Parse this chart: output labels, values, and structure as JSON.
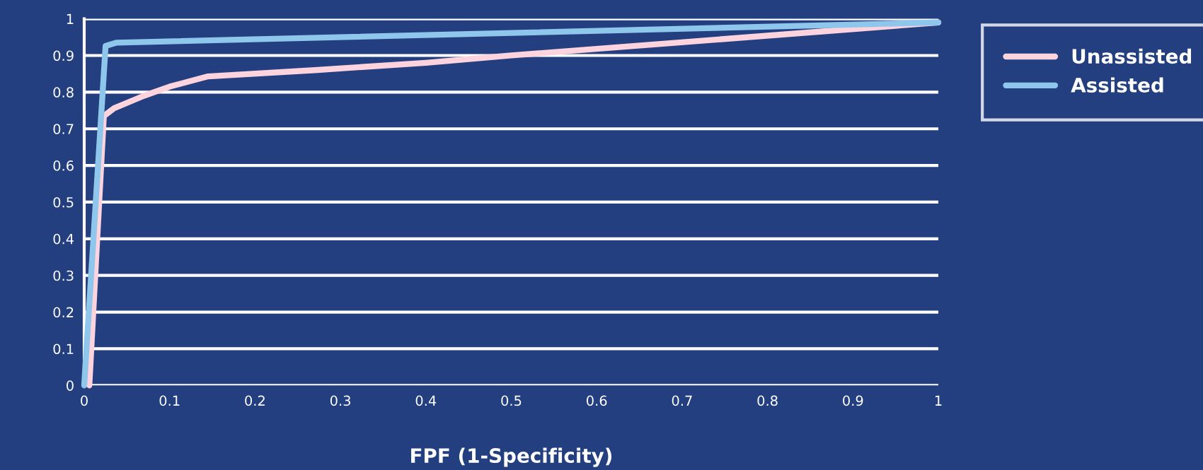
{
  "chart_data": {
    "type": "line",
    "xlabel": "FPF (1-Specificity)",
    "xlim": [
      0,
      1
    ],
    "xticks": [
      0,
      0.1,
      0.2,
      0.3,
      0.4,
      0.5,
      0.6,
      0.7,
      0.8,
      0.9,
      1
    ],
    "ylim": [
      0,
      1
    ],
    "yticks": [
      0,
      0.1,
      0.2,
      0.3,
      0.4,
      0.5,
      0.6,
      0.7,
      0.8,
      0.9,
      1
    ],
    "grid": "y",
    "legend": "top right",
    "marker": "none",
    "line_style": "solid",
    "series": [
      {
        "name": "Unassisted",
        "color": "#fdd3de",
        "x": [
          0.006,
          0.023,
          0.035,
          0.07,
          0.1,
          0.145,
          0.27,
          0.4,
          0.5,
          1
        ],
        "values": [
          0,
          0.735,
          0.756,
          0.79,
          0.815,
          0.843,
          0.86,
          0.88,
          0.9,
          0.99
        ]
      },
      {
        "name": "Assisted",
        "color": "#8fc6ec",
        "x": [
          0,
          0.025,
          0.038,
          1
        ],
        "values": [
          0,
          0.926,
          0.935,
          0.99
        ]
      }
    ]
  }
}
